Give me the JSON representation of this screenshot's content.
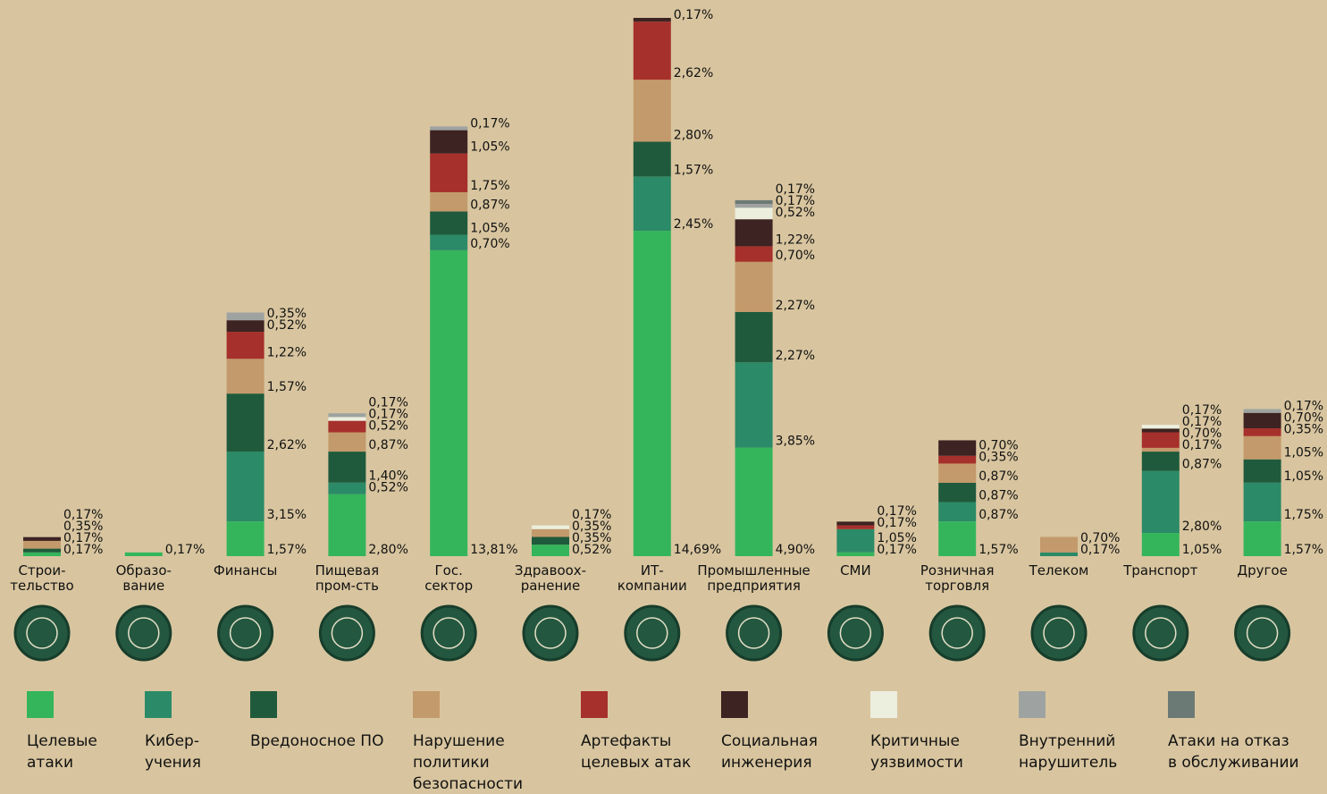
{
  "chart_data": {
    "type": "stacked-bar",
    "categories": [
      "Строи-\nтельство",
      "Образо-\nвание",
      "Финансы",
      "Пищевая\nпром-сть",
      "Гос.\nсектор",
      "Здравоох-\nранение",
      "ИТ-\nкомпании",
      "Промышленные\nпредприятия",
      "СМИ",
      "Розничная\nторговля",
      "Телеком",
      "Транспорт",
      "Другое"
    ],
    "series": [
      {
        "name": "Целевые атаки",
        "color": "#34b55c",
        "values": [
          0.17,
          0.17,
          1.57,
          2.8,
          13.81,
          0.52,
          14.69,
          4.9,
          0.17,
          1.57,
          null,
          1.05,
          1.57
        ],
        "value_labels": [
          "0,17%",
          "0,17%",
          "1,57%",
          "2,80%",
          "13,81%",
          "0,52%",
          "14,69%",
          "4,90%",
          "0,17%",
          "1,57%",
          null,
          "1,05%",
          "1,57%"
        ]
      },
      {
        "name": "Кибер-учения",
        "color": "#2b8a67",
        "values": [
          null,
          null,
          3.15,
          0.52,
          0.7,
          null,
          2.45,
          3.85,
          1.05,
          0.87,
          0.17,
          2.8,
          1.75
        ],
        "value_labels": [
          null,
          null,
          "3,15%",
          "0,52%",
          "0,70%",
          null,
          "2,45%",
          "3,85%",
          "1,05%",
          "0,87%",
          "0,17%",
          "2,80%",
          "1,75%"
        ]
      },
      {
        "name": "Вредоносное ПО",
        "color": "#1f5a3c",
        "values": [
          0.17,
          null,
          2.62,
          1.4,
          1.05,
          0.35,
          1.57,
          2.27,
          null,
          0.87,
          null,
          0.87,
          1.05
        ],
        "value_labels": [
          "0,17%",
          null,
          "2,62%",
          "1,40%",
          "1,05%",
          "0,35%",
          "1,57%",
          "2,27%",
          null,
          "0,87%",
          null,
          "0,87%",
          "1,05%"
        ]
      },
      {
        "name": "Нарушение политики безопасности",
        "color": "#c39a6b",
        "values": [
          0.35,
          null,
          1.57,
          0.87,
          0.87,
          0.35,
          2.8,
          2.27,
          null,
          0.87,
          0.7,
          0.17,
          1.05
        ],
        "value_labels": [
          "0,35%",
          null,
          "1,57%",
          "0,87%",
          "0,87%",
          "0,35%",
          "2,80%",
          "2,27%",
          null,
          "0,87%",
          "0,70%",
          "0,17%",
          "1,05%"
        ]
      },
      {
        "name": "Артефакты целевых атак",
        "color": "#a6302b",
        "values": [
          null,
          null,
          1.22,
          0.52,
          1.75,
          null,
          2.62,
          0.7,
          0.17,
          0.35,
          null,
          0.7,
          0.35
        ],
        "value_labels": [
          null,
          null,
          "1,22%",
          "0,52%",
          "1,75%",
          null,
          "2,62%",
          "0,70%",
          "0,17%",
          "0,35%",
          null,
          "0,70%",
          "0,35%"
        ]
      },
      {
        "name": "Социальная инженерия",
        "color": "#3d2322",
        "values": [
          0.17,
          null,
          0.52,
          null,
          1.05,
          null,
          0.17,
          1.22,
          0.17,
          0.7,
          null,
          0.17,
          0.7
        ],
        "value_labels": [
          "0,17%",
          null,
          "0,52%",
          null,
          "1,05%",
          null,
          "0,17%",
          "1,22%",
          "0,17%",
          "0,70%",
          null,
          "0,17%",
          "0,70%"
        ]
      },
      {
        "name": "Критичные уязвимости",
        "color": "#eceede",
        "values": [
          null,
          null,
          null,
          0.17,
          null,
          0.17,
          null,
          0.52,
          null,
          null,
          null,
          0.17,
          null
        ],
        "value_labels": [
          null,
          null,
          null,
          "0,17%",
          null,
          "0,17%",
          null,
          "0,52%",
          null,
          null,
          null,
          "0,17%",
          null
        ]
      },
      {
        "name": "Внутренний нарушитель",
        "color": "#9ea3a1",
        "values": [
          null,
          null,
          0.35,
          0.17,
          0.17,
          null,
          null,
          0.17,
          null,
          null,
          null,
          null,
          0.17
        ],
        "value_labels": [
          null,
          null,
          "0,35%",
          "0,17%",
          "0,17%",
          null,
          null,
          "0,17%",
          null,
          null,
          null,
          null,
          "0,17%"
        ]
      },
      {
        "name": "Атаки на отказ в обслуживании",
        "color": "#6c7a76",
        "values": [
          null,
          null,
          null,
          null,
          null,
          null,
          null,
          0.17,
          null,
          null,
          null,
          null,
          null
        ],
        "value_labels": [
          null,
          null,
          null,
          null,
          null,
          null,
          null,
          "0,17%",
          null,
          null,
          null,
          null,
          null
        ]
      }
    ]
  }
}
